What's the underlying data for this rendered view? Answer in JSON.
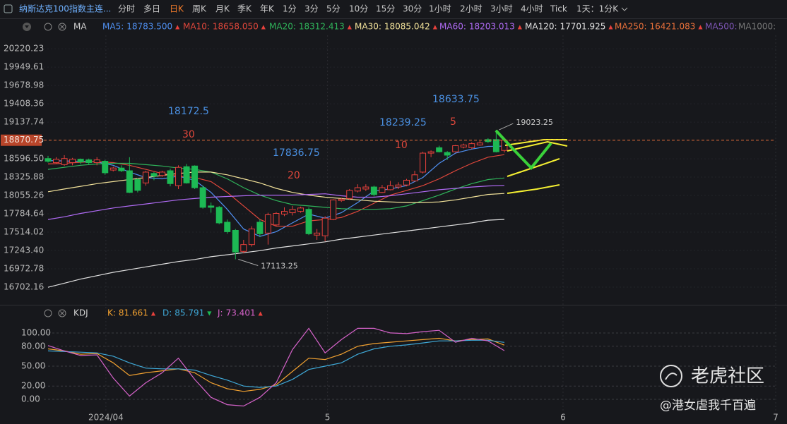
{
  "toolbar": {
    "symbol": "纳斯达克100指数主连...",
    "periods": [
      "分时",
      "多日",
      "日K",
      "周K",
      "月K",
      "季K",
      "年K",
      "1分",
      "3分",
      "5分",
      "10分",
      "15分",
      "30分",
      "1小时",
      "2小时",
      "3小时",
      "4小时",
      "Tick"
    ],
    "active": 2,
    "interval": "1天：1分K"
  },
  "notes": [
    {
      "text": "18172.5",
      "color": "#4a90e2"
    },
    {
      "text": "30",
      "color": "#e0473b"
    },
    {
      "text": "17836.75",
      "color": "#4a90e2"
    },
    {
      "text": "20",
      "color": "#e0473b"
    },
    {
      "text": "18239.25",
      "color": "#4a90e2"
    },
    {
      "text": "10",
      "color": "#e0473b"
    },
    {
      "text": "18633.75",
      "color": "#4a90e2"
    },
    {
      "text": "5",
      "color": "#e0473b"
    }
  ],
  "watermark": {
    "brand": "老虎社区",
    "author": "@港女虐我千百遍"
  },
  "chart_data": [
    {
      "type": "candlestick",
      "indicator": "MA",
      "up_color": "#e8413c",
      "down_color": "#1db954",
      "grid": true,
      "xlim": [
        -0.52,
        89.3
      ],
      "xticks": [
        {
          "value": 7.1,
          "label": "2024/04"
        },
        {
          "value": 34.3,
          "label": "5"
        },
        {
          "value": 63.2,
          "label": "6"
        },
        {
          "value": 89.3,
          "label": "7"
        }
      ],
      "ylim": [
        16462,
        20420
      ],
      "yticks": [
        20220.23,
        19949.61,
        19678.98,
        19408.36,
        19137.74,
        {
          "value": 18596.5,
          "label": "18596.50"
        },
        18325.88,
        18055.26,
        17784.64,
        17514.02,
        {
          "value": 17243.4,
          "label": "17243.40"
        },
        16972.78,
        16702.16
      ],
      "last_price": 18870.75,
      "max_label": 19023.25,
      "min_label": 17113.25,
      "open": [
        18600,
        18540,
        18510,
        18540,
        18590,
        18580,
        18540,
        18560,
        18430,
        18460,
        18420,
        18290,
        18240,
        18380,
        18350,
        18420,
        18200,
        18480,
        18490,
        18170,
        17900,
        17880,
        17660,
        17540,
        17230,
        17330,
        17660,
        17500,
        17620,
        17780,
        17800,
        17820,
        17850,
        17470,
        17460,
        17700,
        17980,
        18010,
        18120,
        18150,
        18180,
        18100,
        18140,
        18180,
        18210,
        18270,
        18400,
        18680,
        18760,
        18690,
        18700,
        18770,
        18760,
        18800,
        18880,
        18880,
        18720
      ],
      "high": [
        18640,
        18620,
        18650,
        18610,
        18600,
        18600,
        18620,
        18580,
        18480,
        18500,
        18620,
        18310,
        18420,
        18400,
        18420,
        18450,
        18500,
        18520,
        18500,
        18200,
        17950,
        17900,
        17700,
        17560,
        17400,
        17600,
        17700,
        17800,
        17810,
        17880,
        17900,
        17890,
        17880,
        17560,
        17750,
        18000,
        18020,
        18150,
        18220,
        18220,
        18200,
        18210,
        18270,
        18250,
        18300,
        18420,
        18700,
        18720,
        18790,
        18710,
        18800,
        18820,
        18840,
        18860,
        18900,
        19023.25,
        18900
      ],
      "low": [
        18540,
        18520,
        18490,
        18500,
        18520,
        18510,
        18500,
        18360,
        18410,
        18400,
        18090,
        18100,
        18200,
        18280,
        18330,
        18190,
        18150,
        18230,
        18150,
        17860,
        17800,
        17630,
        17490,
        17113.25,
        17200,
        17300,
        17440,
        17330,
        17600,
        17750,
        17760,
        17800,
        17470,
        17400,
        17380,
        17690,
        17960,
        17990,
        18100,
        18120,
        18040,
        18090,
        18130,
        18150,
        18190,
        18260,
        18380,
        18620,
        18690,
        18580,
        18690,
        18750,
        18740,
        18790,
        18830,
        18690,
        18690
      ],
      "close": [
        18560,
        18590,
        18600,
        18590,
        18550,
        18540,
        18580,
        18390,
        18460,
        18420,
        18100,
        18130,
        18400,
        18340,
        18400,
        18230,
        18470,
        18240,
        18170,
        17880,
        17880,
        17650,
        17520,
        17220,
        17330,
        17560,
        17490,
        17770,
        17790,
        17820,
        17850,
        17870,
        17490,
        17500,
        17720,
        17990,
        18000,
        18130,
        18170,
        18180,
        18070,
        18170,
        18200,
        18210,
        18280,
        18360,
        18680,
        18700,
        18700,
        18650,
        18790,
        18800,
        18820,
        18830,
        18850,
        18700,
        18870.75
      ],
      "series": [
        {
          "name": "MA5:",
          "color": "#4f8ff0",
          "last_label": "18783.500",
          "trend": "▲",
          "x": [
            0,
            2,
            4,
            6,
            8,
            10,
            12,
            14,
            16,
            18,
            20,
            22,
            24,
            26,
            28,
            30,
            32,
            34,
            36,
            38,
            40,
            42,
            44,
            46,
            48,
            50,
            52,
            54,
            56
          ],
          "values": [
            18570,
            18565,
            18560,
            18550,
            18500,
            18400,
            18320,
            18300,
            18340,
            18280,
            18100,
            17850,
            17560,
            17450,
            17520,
            17650,
            17780,
            17720,
            17800,
            17950,
            18120,
            18150,
            18200,
            18320,
            18530,
            18680,
            18740,
            18780,
            18783.5
          ]
        },
        {
          "name": "MA10:",
          "color": "#e0473b",
          "last_label": "18658.050",
          "trend": "▲",
          "x": [
            0,
            2,
            4,
            6,
            8,
            10,
            12,
            14,
            16,
            18,
            20,
            22,
            24,
            26,
            28,
            30,
            32,
            34,
            36,
            38,
            40,
            42,
            44,
            46,
            48,
            50,
            52,
            54,
            56
          ],
          "values": [
            18520,
            18530,
            18545,
            18555,
            18540,
            18500,
            18440,
            18380,
            18340,
            18320,
            18260,
            18100,
            17900,
            17700,
            17600,
            17600,
            17680,
            17700,
            17730,
            17820,
            17940,
            18060,
            18130,
            18200,
            18300,
            18420,
            18530,
            18620,
            18658.05
          ]
        },
        {
          "name": "MA20:",
          "color": "#2fb35a",
          "last_label": "18312.413",
          "trend": "▲",
          "x": [
            0,
            2,
            4,
            6,
            8,
            10,
            12,
            14,
            16,
            18,
            20,
            22,
            24,
            26,
            28,
            30,
            32,
            34,
            36,
            38,
            40,
            42,
            44,
            46,
            48,
            50,
            52,
            54,
            56
          ],
          "values": [
            18440,
            18470,
            18500,
            18520,
            18530,
            18530,
            18510,
            18490,
            18460,
            18440,
            18400,
            18300,
            18170,
            18060,
            17980,
            17920,
            17900,
            17880,
            17860,
            17850,
            17850,
            17860,
            17900,
            17980,
            18060,
            18150,
            18230,
            18290,
            18312.413
          ]
        },
        {
          "name": "MA30:",
          "color": "#f2e29a",
          "last_label": "18085.042",
          "trend": "▲",
          "x": [
            0,
            2,
            4,
            6,
            8,
            10,
            12,
            14,
            16,
            18,
            20,
            22,
            24,
            26,
            28,
            30,
            32,
            34,
            36,
            38,
            40,
            42,
            44,
            46,
            48,
            50,
            52,
            54,
            56
          ],
          "values": [
            18110,
            18150,
            18190,
            18230,
            18260,
            18290,
            18320,
            18350,
            18380,
            18400,
            18400,
            18360,
            18300,
            18240,
            18160,
            18100,
            18060,
            18030,
            18010,
            17990,
            17970,
            17960,
            17950,
            17950,
            17960,
            17990,
            18030,
            18070,
            18085.042
          ]
        },
        {
          "name": "MA60:",
          "color": "#b06bf5",
          "last_label": "18203.013",
          "trend": "▲",
          "x": [
            0,
            2,
            4,
            6,
            8,
            10,
            12,
            14,
            16,
            18,
            20,
            22,
            24,
            26,
            28,
            30,
            32,
            34,
            36,
            38,
            40,
            42,
            44,
            46,
            48,
            50,
            52,
            54,
            56
          ],
          "values": [
            17700,
            17740,
            17790,
            17830,
            17870,
            17900,
            17930,
            17960,
            17990,
            18010,
            18030,
            18040,
            18050,
            18060,
            18060,
            18060,
            18070,
            18080,
            18050,
            18030,
            18030,
            18050,
            18080,
            18110,
            18140,
            18160,
            18180,
            18195,
            18203.013
          ]
        },
        {
          "name": "MA120:",
          "color": "#e0e0e0",
          "last_label": "17701.925",
          "trend": "▲",
          "x": [
            0,
            2,
            4,
            6,
            8,
            10,
            12,
            14,
            16,
            18,
            20,
            22,
            24,
            26,
            28,
            30,
            32,
            34,
            36,
            38,
            40,
            42,
            44,
            46,
            48,
            50,
            52,
            54,
            56
          ],
          "values": [
            16700,
            16760,
            16820,
            16870,
            16920,
            16960,
            17000,
            17040,
            17080,
            17110,
            17150,
            17180,
            17210,
            17240,
            17280,
            17310,
            17340,
            17370,
            17410,
            17440,
            17470,
            17500,
            17530,
            17560,
            17590,
            17620,
            17650,
            17690,
            17701.925
          ]
        }
      ],
      "legend_extra": [
        {
          "name": "MA250:",
          "color": "#e8703a",
          "last_label": "16421.083",
          "trend": "▲"
        },
        {
          "name": "MA500:",
          "color": "#7d55b5"
        },
        {
          "name": "MA1000:",
          "color": "#777777"
        }
      ]
    },
    {
      "type": "line",
      "indicator": "KDJ",
      "grid": true,
      "xlim": [
        -0.52,
        89.3
      ],
      "ylim": [
        -18,
        118
      ],
      "yticks": [
        {
          "value": 100,
          "label": "100.00"
        },
        {
          "value": 80,
          "label": "80.00"
        },
        {
          "value": 50,
          "label": "50.00"
        },
        {
          "value": 20,
          "label": "20.00"
        },
        {
          "value": 0,
          "label": "0.00"
        }
      ],
      "series": [
        {
          "name": "K:",
          "color": "#f0a030",
          "last_label": "81.661",
          "trend": "▲",
          "x": [
            0,
            2,
            4,
            6,
            8,
            10,
            12,
            14,
            16,
            18,
            20,
            22,
            24,
            26,
            28,
            30,
            32,
            34,
            36,
            38,
            40,
            42,
            44,
            46,
            48,
            50,
            52,
            54,
            56
          ],
          "values": [
            76,
            73,
            68,
            69,
            55,
            36,
            40,
            43,
            46,
            40,
            25,
            16,
            12,
            15,
            22,
            42,
            62,
            60,
            68,
            80,
            84,
            86,
            88,
            90,
            92,
            88,
            90,
            91,
            81.661
          ]
        },
        {
          "name": "D:",
          "color": "#3fa9d8",
          "last_label": "85.791",
          "trend": "▼",
          "x": [
            0,
            2,
            4,
            6,
            8,
            10,
            12,
            14,
            16,
            18,
            20,
            22,
            24,
            26,
            28,
            30,
            32,
            34,
            36,
            38,
            40,
            42,
            44,
            46,
            48,
            50,
            52,
            54,
            56
          ],
          "values": [
            73,
            72,
            71,
            70,
            65,
            55,
            47,
            46,
            46,
            44,
            36,
            29,
            20,
            18,
            20,
            30,
            45,
            50,
            55,
            68,
            76,
            80,
            82,
            85,
            88,
            88,
            89,
            89,
            85.791
          ]
        },
        {
          "name": "J:",
          "color": "#d462c8",
          "last_label": "73.401",
          "trend": "▲",
          "x": [
            0,
            2,
            4,
            6,
            8,
            10,
            12,
            14,
            16,
            18,
            20,
            22,
            24,
            26,
            28,
            30,
            32,
            34,
            36,
            38,
            40,
            42,
            44,
            46,
            48,
            50,
            52,
            54,
            56
          ],
          "values": [
            81,
            73,
            66,
            67,
            32,
            5,
            25,
            40,
            62,
            30,
            3,
            -8,
            -10,
            3,
            25,
            75,
            107,
            70,
            90,
            107,
            107,
            100,
            99,
            102,
            104,
            86,
            92,
            88,
            73.401
          ]
        }
      ]
    }
  ]
}
